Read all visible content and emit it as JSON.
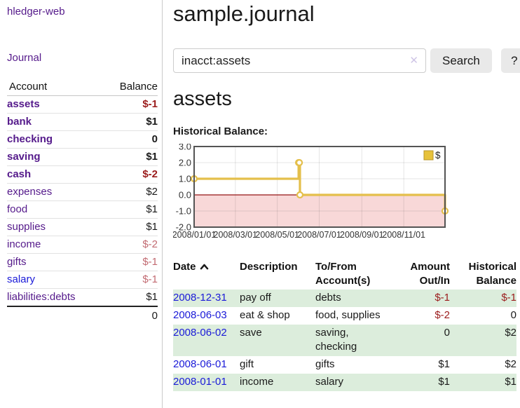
{
  "app": {
    "title": "hledger-web"
  },
  "sidebar": {
    "journal_link": "Journal",
    "accounts": {
      "header_account": "Account",
      "header_balance": "Balance",
      "rows": [
        {
          "account": "assets",
          "balance": "$-1",
          "depth": 1,
          "bold": true,
          "balance_tone": "neg-dark",
          "link_tone": "visited"
        },
        {
          "account": "bank",
          "balance": "$1",
          "depth": 2,
          "bold": true,
          "balance_tone": "normal",
          "link_tone": "visited"
        },
        {
          "account": "checking",
          "balance": "0",
          "depth": 3,
          "bold": true,
          "balance_tone": "normal",
          "link_tone": "visited"
        },
        {
          "account": "saving",
          "balance": "$1",
          "depth": 3,
          "bold": true,
          "balance_tone": "normal",
          "link_tone": "visited"
        },
        {
          "account": "cash",
          "balance": "$-2",
          "depth": 2,
          "bold": true,
          "balance_tone": "neg-dark",
          "link_tone": "visited"
        },
        {
          "account": "expenses",
          "balance": "$2",
          "depth": 1,
          "bold": false,
          "balance_tone": "normal",
          "link_tone": "visited"
        },
        {
          "account": "food",
          "balance": "$1",
          "depth": 2,
          "bold": false,
          "balance_tone": "normal",
          "link_tone": "visited"
        },
        {
          "account": "supplies",
          "balance": "$1",
          "depth": 2,
          "bold": false,
          "balance_tone": "normal",
          "link_tone": "visited"
        },
        {
          "account": "income",
          "balance": "$-2",
          "depth": 1,
          "bold": false,
          "balance_tone": "neg-light",
          "link_tone": "visited"
        },
        {
          "account": "gifts",
          "balance": "$-1",
          "depth": 2,
          "bold": false,
          "balance_tone": "neg-light",
          "link_tone": "visited"
        },
        {
          "account": "salary",
          "balance": "$-1",
          "depth": 2,
          "bold": false,
          "balance_tone": "neg-light",
          "link_tone": "unvisited"
        },
        {
          "account": "liabilities:debts",
          "balance": "$1",
          "depth": 1,
          "bold": false,
          "balance_tone": "normal",
          "link_tone": "visited"
        }
      ],
      "total": "0"
    }
  },
  "main": {
    "title": "sample.journal",
    "search": {
      "value": "inacct:assets",
      "button": "Search",
      "help": "?",
      "clear": "✕"
    },
    "account_heading": "assets",
    "chart_heading": "Historical Balance:"
  },
  "chart_data": {
    "type": "line",
    "step": true,
    "title": "Historical Balance:",
    "series": [
      {
        "name": "$",
        "color": "#e4bf4b",
        "points": [
          [
            "2008-01-01",
            1
          ],
          [
            "2008-06-01",
            2
          ],
          [
            "2008-06-02",
            2
          ],
          [
            "2008-06-03",
            0
          ],
          [
            "2008-12-31",
            -1
          ]
        ]
      }
    ],
    "x_range": [
      "2008-01-01",
      "2008-12-31"
    ],
    "ylim": [
      -2,
      3
    ],
    "y_ticks": [
      3,
      2,
      1,
      0,
      -1,
      -2
    ],
    "x_ticks": [
      "2008/01/01",
      "2008/03/01",
      "2008/05/01",
      "2008/07/01",
      "2008/09/01",
      "2008/11/01"
    ],
    "legend": {
      "label": "$",
      "position": "top-right"
    },
    "grid": true,
    "negative_region_color": "#f8d8d8",
    "zero_line_color": "#941414"
  },
  "register": {
    "columns": [
      "Date",
      "Description",
      "To/From Account(s)",
      "Amount Out/In",
      "Historical Balance"
    ],
    "sort_column": "Date",
    "sort_direction": "ascending",
    "rows": [
      {
        "date": "2008-12-31",
        "description": "pay off",
        "accounts": "debts",
        "amount": "$-1",
        "balance": "$-1"
      },
      {
        "date": "2008-06-03",
        "description": "eat & shop",
        "accounts": "food, supplies",
        "amount": "$-2",
        "balance": "0"
      },
      {
        "date": "2008-06-02",
        "description": "save",
        "accounts": "saving, checking",
        "amount": "0",
        "balance": "$2"
      },
      {
        "date": "2008-06-01",
        "description": "gift",
        "accounts": "gifts",
        "amount": "$1",
        "balance": "$2"
      },
      {
        "date": "2008-01-01",
        "description": "income",
        "accounts": "salary",
        "amount": "$1",
        "balance": "$1"
      }
    ]
  },
  "colors": {
    "accent_purple": "#551a8b",
    "link_blue": "#1a1ad8",
    "negative_dark": "#9b1c1c",
    "negative_light": "#c26b72",
    "stripe_green": "#dceddc",
    "series_gold": "#e4bf4b",
    "legend_fill": "#e7c23b"
  }
}
